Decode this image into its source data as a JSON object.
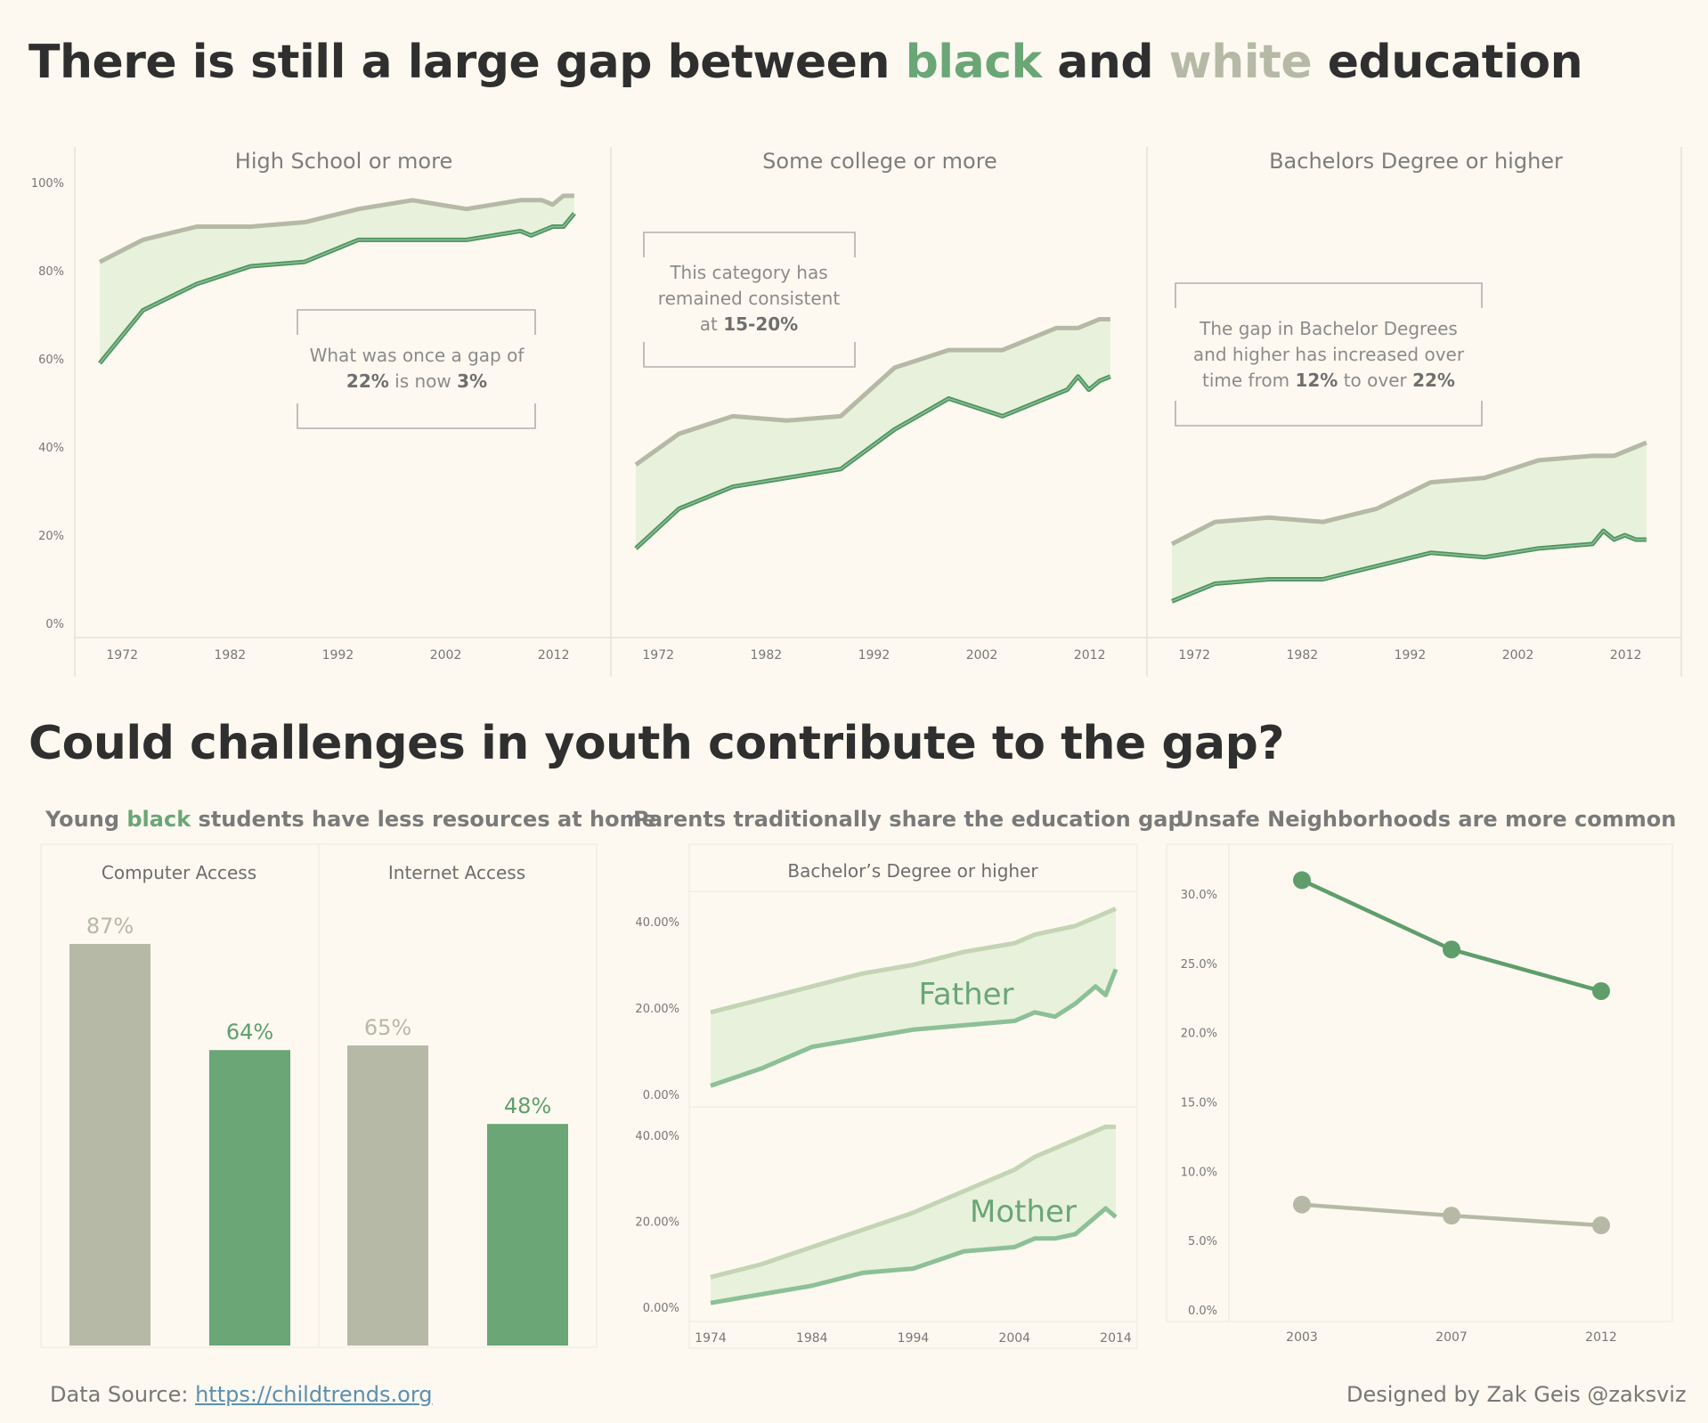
{
  "title": {
    "part1": "There is still a large gap between ",
    "black": "black",
    "part2": " and ",
    "white": "white",
    "part3": " education"
  },
  "title2": "Could challenges in youth contribute to the gap?",
  "colors": {
    "black_series": "#6aa676",
    "white_series": "#b5b9a6",
    "gap_fill": "#e8f1dc",
    "background": "#fdf9f0"
  },
  "annotations": {
    "hs": {
      "a": "What was once a gap of",
      "b_pre": "",
      "v1": "22%",
      "b_mid": " is now ",
      "v2": "3%"
    },
    "sc": {
      "a": "This category has",
      "b": "remained consistent",
      "c_pre": "at ",
      "v1": "15-20%"
    },
    "ba": {
      "a": "The gap in Bachelor Degrees",
      "b": "and higher has increased over",
      "c_pre": "time from ",
      "v1": "12%",
      "c_mid": " to over ",
      "v2": "22%"
    }
  },
  "subtitles": {
    "resources_pre": "Young ",
    "resources_black": "black",
    "resources_post": " students have less resources at home",
    "parents": "Parents traditionally share the education gap",
    "unsafe": "Unsafe Neighborhoods are more common"
  },
  "footer": {
    "source_label": "Data Source: ",
    "source_link": "https://childtrends.org",
    "credit": "Designed by Zak Geis @zaksviz"
  },
  "chart_data": [
    {
      "type": "area",
      "title": "High School or more",
      "ylim": [
        0,
        100
      ],
      "yticks": [
        "0%",
        "20%",
        "40%",
        "60%",
        "80%",
        "100%"
      ],
      "xticks": [
        "1972",
        "1982",
        "1992",
        "2002",
        "2012"
      ],
      "xlim": [
        1970,
        2015
      ],
      "series": [
        {
          "name": "white",
          "x": [
            1970,
            1974,
            1979,
            1984,
            1989,
            1994,
            1999,
            2004,
            2009,
            2010,
            2011,
            2012,
            2013,
            2014
          ],
          "values": [
            82,
            87,
            90,
            90,
            91,
            94,
            96,
            94,
            96,
            96,
            96,
            95,
            97,
            97
          ]
        },
        {
          "name": "black",
          "x": [
            1970,
            1974,
            1979,
            1984,
            1989,
            1994,
            1999,
            2004,
            2009,
            2010,
            2011,
            2012,
            2013,
            2014
          ],
          "values": [
            59,
            71,
            77,
            81,
            82,
            87,
            87,
            87,
            89,
            88,
            89,
            90,
            90,
            93
          ]
        }
      ]
    },
    {
      "type": "area",
      "title": "Some college or more",
      "ylim": [
        0,
        100
      ],
      "xticks": [
        "1972",
        "1982",
        "1992",
        "2002",
        "2012"
      ],
      "xlim": [
        1970,
        2015
      ],
      "series": [
        {
          "name": "white",
          "x": [
            1970,
            1974,
            1979,
            1984,
            1989,
            1994,
            1999,
            2004,
            2009,
            2010,
            2011,
            2012,
            2013,
            2014
          ],
          "values": [
            36,
            43,
            47,
            46,
            47,
            58,
            62,
            62,
            67,
            67,
            67,
            68,
            69,
            69
          ]
        },
        {
          "name": "black",
          "x": [
            1970,
            1974,
            1979,
            1984,
            1989,
            1994,
            1999,
            2004,
            2009,
            2010,
            2011,
            2012,
            2013,
            2014
          ],
          "values": [
            17,
            26,
            31,
            33,
            35,
            44,
            51,
            47,
            52,
            53,
            56,
            53,
            55,
            56
          ]
        }
      ]
    },
    {
      "type": "area",
      "title": "Bachelors Degree or higher",
      "ylim": [
        0,
        100
      ],
      "xticks": [
        "1972",
        "1982",
        "1992",
        "2002",
        "2012"
      ],
      "xlim": [
        1970,
        2015
      ],
      "series": [
        {
          "name": "white",
          "x": [
            1970,
            1974,
            1979,
            1984,
            1989,
            1994,
            1999,
            2004,
            2009,
            2010,
            2011,
            2012,
            2013,
            2014
          ],
          "values": [
            18,
            23,
            24,
            23,
            26,
            32,
            33,
            37,
            38,
            38,
            38,
            39,
            40,
            41
          ]
        },
        {
          "name": "black",
          "x": [
            1970,
            1974,
            1979,
            1984,
            1989,
            1994,
            1999,
            2004,
            2009,
            2010,
            2011,
            2012,
            2013,
            2014
          ],
          "values": [
            5,
            9,
            10,
            10,
            13,
            16,
            15,
            17,
            18,
            21,
            19,
            20,
            19,
            19
          ]
        }
      ]
    },
    {
      "type": "bar",
      "panels": [
        {
          "title": "Computer Access",
          "values": [
            87,
            64
          ],
          "labels": [
            "87%",
            "64%"
          ]
        },
        {
          "title": "Internet Access",
          "values": [
            65,
            48
          ],
          "labels": [
            "65%",
            "48%"
          ]
        }
      ]
    },
    {
      "type": "area",
      "title": "Bachelor’s Degree or higher",
      "xticks": [
        "1974",
        "1984",
        "1994",
        "2004",
        "2014"
      ],
      "yticks": [
        "0.00%",
        "20.00%",
        "40.00%"
      ],
      "xlim": [
        1974,
        2014
      ],
      "ylim": [
        0,
        45
      ],
      "panels": [
        {
          "label": "Father",
          "white": {
            "x": [
              1974,
              1979,
              1984,
              1989,
              1994,
              1999,
              2004,
              2006,
              2008,
              2010,
              2012,
              2013,
              2014
            ],
            "values": [
              19,
              22,
              25,
              28,
              30,
              33,
              35,
              37,
              38,
              39,
              41,
              42,
              43
            ]
          },
          "black": {
            "x": [
              1974,
              1979,
              1984,
              1989,
              1994,
              1999,
              2004,
              2006,
              2008,
              2010,
              2012,
              2013,
              2014
            ],
            "values": [
              2,
              6,
              11,
              13,
              15,
              16,
              17,
              19,
              18,
              21,
              25,
              23,
              29
            ]
          }
        },
        {
          "label": "Mother",
          "white": {
            "x": [
              1974,
              1979,
              1984,
              1989,
              1994,
              1999,
              2004,
              2006,
              2008,
              2010,
              2012,
              2013,
              2014
            ],
            "values": [
              7,
              10,
              14,
              18,
              22,
              27,
              32,
              35,
              37,
              39,
              41,
              42,
              42
            ]
          },
          "black": {
            "x": [
              1974,
              1979,
              1984,
              1989,
              1994,
              1999,
              2004,
              2006,
              2008,
              2010,
              2012,
              2013,
              2014
            ],
            "values": [
              1,
              3,
              5,
              8,
              9,
              13,
              14,
              16,
              16,
              17,
              21,
              23,
              21
            ]
          }
        }
      ]
    },
    {
      "type": "line",
      "x": [
        "2003",
        "2007",
        "2012"
      ],
      "yticks": [
        "0.0%",
        "5.0%",
        "10.0%",
        "15.0%",
        "20.0%",
        "25.0%",
        "30.0%"
      ],
      "ylim": [
        0,
        32
      ],
      "series": [
        {
          "name": "black",
          "values": [
            31,
            26,
            23
          ]
        },
        {
          "name": "white",
          "values": [
            7.6,
            6.8,
            6.1
          ]
        }
      ]
    }
  ]
}
